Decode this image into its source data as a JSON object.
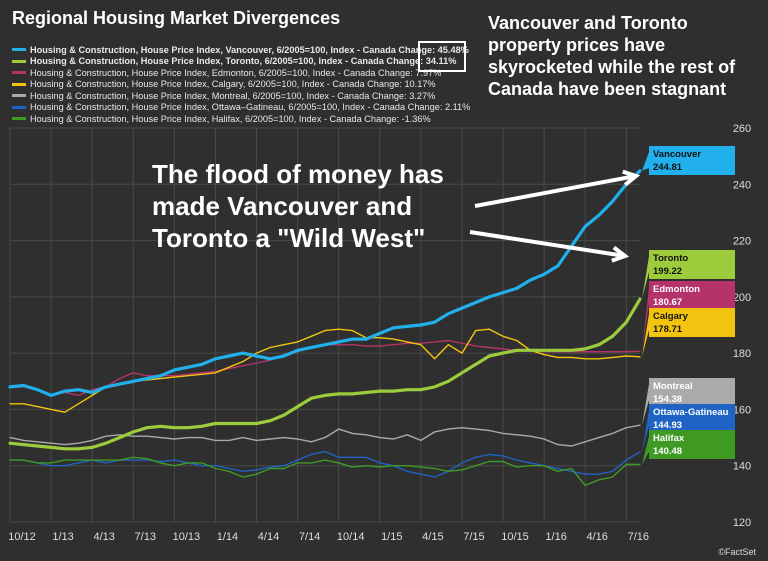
{
  "title": "Regional Housing Market Divergences",
  "note": "Vancouver and Toronto property prices have skyrocketed while the rest of Canada have been stagnant",
  "annotation": "The flood of money has made Vancouver and Toronto a \"Wild West\"",
  "credit": "©FactSet",
  "chart_data": {
    "type": "line",
    "x": [
      "10/12",
      "11/12",
      "12/12",
      "1/13",
      "2/13",
      "3/13",
      "4/13",
      "5/13",
      "6/13",
      "7/13",
      "8/13",
      "9/13",
      "10/13",
      "11/13",
      "12/13",
      "1/14",
      "2/14",
      "3/14",
      "4/14",
      "5/14",
      "6/14",
      "7/14",
      "8/14",
      "9/14",
      "10/14",
      "11/14",
      "12/14",
      "1/15",
      "2/15",
      "3/15",
      "4/15",
      "5/15",
      "6/15",
      "7/15",
      "8/15",
      "9/15",
      "10/15",
      "11/15",
      "12/15",
      "1/16",
      "2/16",
      "3/16",
      "4/16",
      "5/16",
      "6/16",
      "7/16",
      "8/16"
    ],
    "x_tick_labels": [
      "10/12",
      "1/13",
      "4/13",
      "7/13",
      "10/13",
      "1/14",
      "4/14",
      "7/14",
      "10/14",
      "1/15",
      "4/15",
      "7/15",
      "10/15",
      "1/16",
      "4/16",
      "7/16"
    ],
    "ylim": [
      120,
      260
    ],
    "y_ticks": [
      120,
      140,
      160,
      180,
      200,
      220,
      240,
      260
    ],
    "grid": true,
    "series": [
      {
        "legend": "Housing & Construction, House Price Index, Vancouver, 6/2005=100, Index - Canada Change: 45.48%",
        "name": "Vancouver",
        "last": "244.81",
        "color": "#22b0ec",
        "width": 3.2,
        "values": [
          168,
          168.5,
          167,
          165,
          166.5,
          167,
          166,
          168,
          169,
          170,
          171,
          172,
          174,
          175,
          176,
          178,
          179,
          180,
          179,
          178,
          179,
          181,
          182,
          183,
          184,
          185,
          185,
          187,
          189,
          189.5,
          190,
          191,
          194,
          196,
          198,
          200,
          201.5,
          203,
          206,
          208,
          211,
          218,
          225,
          229,
          234,
          240,
          244.8
        ]
      },
      {
        "legend": "Housing & Construction, House Price Index, Toronto, 6/2005=100, Index - Canada Change: 34.11%",
        "name": "Toronto",
        "last": "199.22",
        "color": "#9ccc3c",
        "width": 3.2,
        "values": [
          148,
          147.5,
          147,
          146.5,
          146,
          146,
          146.5,
          148,
          150,
          152,
          153.5,
          154,
          153.5,
          153.5,
          154,
          155,
          155,
          155,
          155,
          156,
          158,
          161,
          164,
          165,
          165.5,
          165.5,
          166,
          166.5,
          166.5,
          167,
          167,
          168,
          170,
          173,
          176,
          179,
          180,
          181,
          181,
          181,
          181,
          181,
          181.5,
          183,
          186,
          191,
          199.2
        ]
      },
      {
        "legend": "Housing & Construction, House Price Index, Edmonton, 6/2005=100, Index - Canada Change: 7.97%",
        "name": "Edmonton",
        "last": "180.67",
        "color": "#b5336b",
        "width": 1.4,
        "values": [
          168,
          168,
          167,
          165,
          166,
          165,
          167,
          168,
          171,
          173,
          172,
          172,
          172,
          172.5,
          173,
          173.5,
          174.5,
          175.5,
          176.5,
          177.5,
          179.5,
          180.5,
          182,
          183,
          183,
          183,
          182.5,
          182.5,
          183,
          183.5,
          183.5,
          184,
          184.5,
          183.5,
          182.5,
          182,
          181.5,
          181,
          181,
          180.5,
          180.5,
          180.5,
          180.5,
          180.5,
          180.5,
          180.5,
          180.67
        ]
      },
      {
        "legend": "Housing & Construction, House Price Index, Calgary, 6/2005=100, Index - Canada Change: 10.17%",
        "name": "Calgary",
        "last": "178.71",
        "color": "#f2c40f",
        "width": 1.4,
        "values": [
          162,
          162,
          161,
          160,
          159,
          162,
          165,
          168,
          169,
          170,
          170.5,
          171,
          171.5,
          172,
          172.5,
          173,
          175,
          177,
          180,
          182,
          183,
          184,
          186,
          188,
          188.5,
          188,
          185.5,
          185.5,
          185,
          184,
          183,
          178,
          183,
          180,
          188,
          188.5,
          186,
          184.5,
          181,
          179.5,
          178.5,
          178.5,
          178,
          178,
          178.5,
          179,
          178.71
        ]
      },
      {
        "legend": "Housing & Construction, House Price Index, Montreal, 6/2005=100, Index - Canada Change: 3.27%",
        "name": "Montreal",
        "last": "154.38",
        "color": "#aaaaaa",
        "width": 1.4,
        "values": [
          150,
          149,
          148.5,
          148,
          147.5,
          148,
          149,
          150.5,
          151,
          150.5,
          150.5,
          150,
          149.5,
          150,
          150,
          149,
          149,
          150,
          149,
          149.5,
          150,
          149.5,
          148.5,
          150,
          153,
          151.5,
          151,
          150,
          149.5,
          151,
          149,
          152,
          153,
          153.5,
          153,
          152.5,
          151.5,
          151,
          150.5,
          149.5,
          147.5,
          147,
          148.5,
          150,
          151.5,
          153.5,
          154.38
        ]
      },
      {
        "legend": "Housing & Construction, House Price Index, Ottawa–Gatineau, 6/2005=100, Index - Canada Change: 2.11%",
        "name": "Ottawa-Gatineau",
        "last": "144.93",
        "color": "#1f63c4",
        "width": 1.4,
        "values": [
          142,
          142,
          141,
          140,
          140,
          141,
          142,
          141,
          142,
          142,
          142,
          141.5,
          142,
          141,
          140,
          140,
          139,
          138,
          138.5,
          139.5,
          140,
          142,
          144,
          145,
          143,
          143,
          143,
          141,
          140,
          138,
          137,
          136,
          138,
          141,
          143,
          144,
          143.5,
          142,
          141,
          140,
          139,
          138,
          137,
          137,
          138,
          142,
          144.93
        ]
      },
      {
        "legend": "Housing & Construction, House Price Index, Halifax, 6/2005=100, Index - Canada Change: -1.36%",
        "name": "Halifax",
        "last": "140.48",
        "color": "#3f9a24",
        "width": 1.4,
        "values": [
          142,
          142,
          141,
          141,
          142,
          142,
          142,
          142,
          142,
          143,
          142.5,
          141,
          140,
          141,
          141,
          139,
          138,
          136,
          137,
          139,
          139,
          141,
          141,
          142,
          141,
          139.5,
          140,
          139.5,
          140,
          140,
          139.5,
          139,
          138,
          138.5,
          140,
          141.5,
          141.5,
          139.5,
          140,
          140,
          138,
          139,
          133,
          135,
          136,
          140.5,
          140.48
        ]
      }
    ],
    "y_label_values": [
      {
        "name": "Vancouver",
        "value": "244.81"
      },
      {
        "name": "Toronto",
        "value": "199.22"
      },
      {
        "name": "Edmonton",
        "value": "180.67"
      },
      {
        "name": "Calgary",
        "value": "178.71"
      },
      {
        "name": "Montreal",
        "value": "154.38"
      },
      {
        "name": "Ottawa-Gatineau",
        "value": "144.93"
      },
      {
        "name": "Halifax",
        "value": "140.48"
      }
    ]
  }
}
